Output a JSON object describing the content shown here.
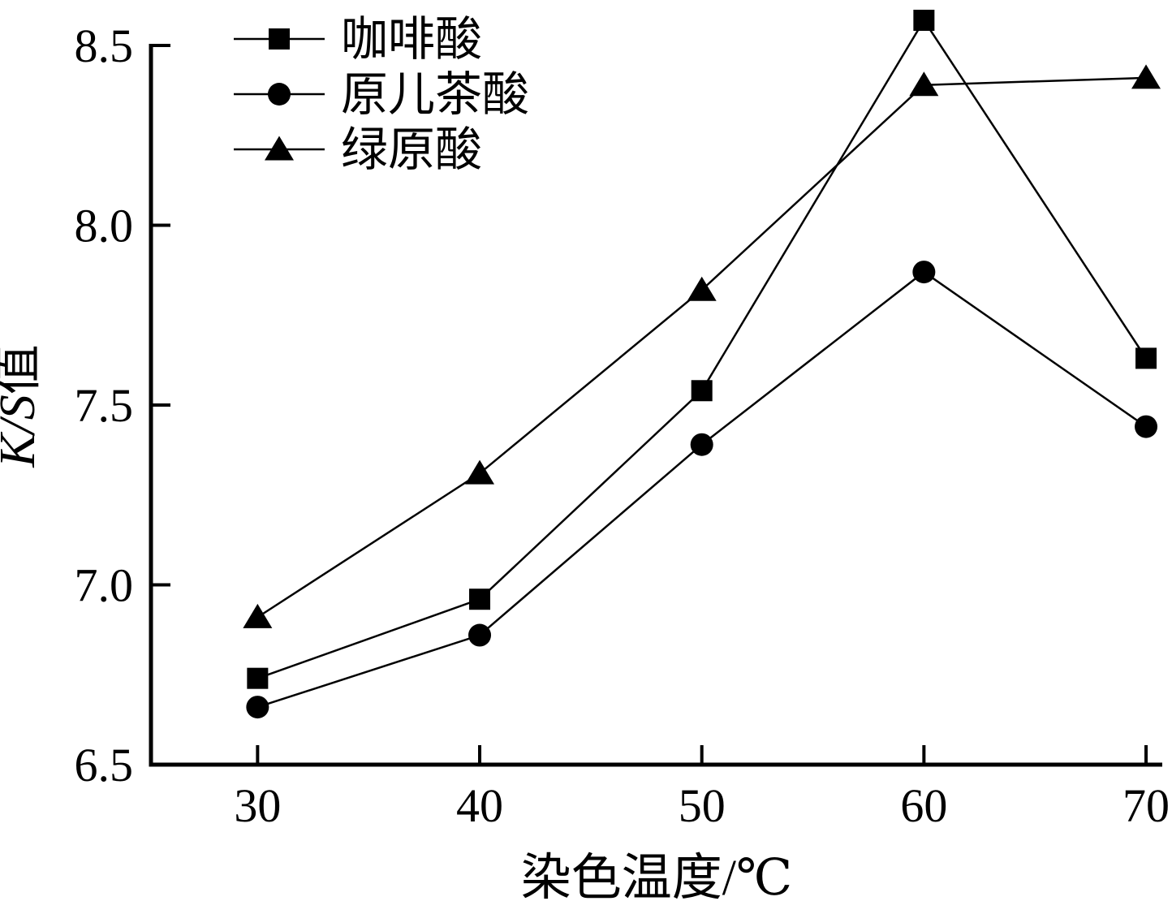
{
  "figure": {
    "background": "#ffffff",
    "ink": "#000000"
  },
  "chart_data": {
    "type": "line",
    "title": "",
    "xlabel": "染色温度/℃",
    "ylabel": "K/S值",
    "ylabel_parts": [
      {
        "text": "K/S",
        "italic": true
      },
      {
        "text": "值",
        "italic": false
      }
    ],
    "x": [
      30,
      40,
      50,
      60,
      70
    ],
    "x_ticks": [
      "30",
      "40",
      "50",
      "60",
      "70"
    ],
    "y_ticks": [
      "6.5",
      "7.0",
      "7.5",
      "8.0",
      "8.5"
    ],
    "xlim": [
      25.2,
      70.73
    ],
    "ylim": [
      6.5,
      8.5
    ],
    "grid": false,
    "legend_position": "top-left",
    "line_color": "#000000",
    "series": [
      {
        "name": "咖啡酸",
        "marker": "square",
        "color": "#000000",
        "values": [
          6.74,
          6.96,
          7.54,
          8.57,
          7.63
        ]
      },
      {
        "name": "原儿茶酸",
        "marker": "circle",
        "color": "#000000",
        "values": [
          6.66,
          6.86,
          7.39,
          7.87,
          7.44
        ]
      },
      {
        "name": "绿原酸",
        "marker": "triangle",
        "color": "#000000",
        "values": [
          6.91,
          7.31,
          7.82,
          8.39,
          8.41
        ]
      }
    ]
  }
}
